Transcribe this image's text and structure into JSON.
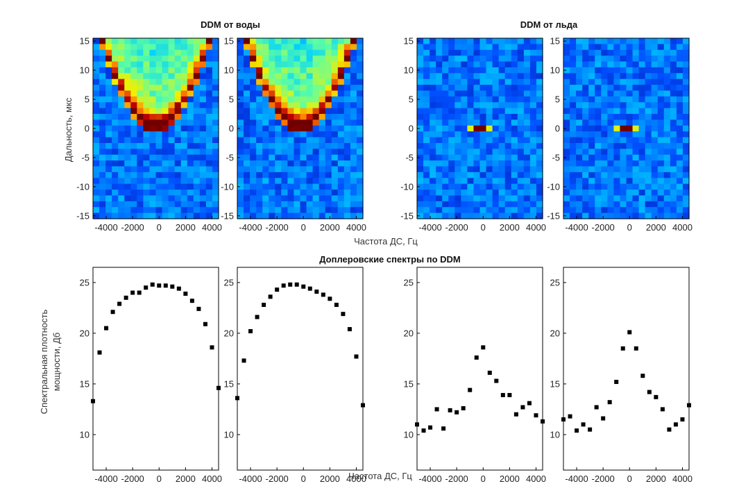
{
  "titles": {
    "water": "DDM от воды",
    "ice": "DDM от льда",
    "spectra": "Доплеровские спектры по DDM"
  },
  "labels": {
    "ddm_ylabel": "Дальность, мкс",
    "ddm_xlabel": "Частота ДС, Гц",
    "spec_ylabel_line1": "Спектральная плотность",
    "spec_ylabel_line2": "мощности, Дб",
    "spec_xlabel": "Частота ДС, Гц"
  },
  "colors": {
    "colormap": [
      "#00008f",
      "#0050ff",
      "#00d0ff",
      "#60ffa0",
      "#f0f000",
      "#ff8000",
      "#c00000",
      "#700000"
    ],
    "marker": "#000000"
  },
  "chart_data": [
    {
      "id": "ddm-water-1",
      "type": "heatmap",
      "pattern": "water",
      "x_ticks": [
        -4000,
        -2000,
        0,
        2000,
        4000
      ],
      "y_ticks": [
        15,
        10,
        5,
        0,
        -5,
        -10,
        -15
      ],
      "xlim": [
        -5000,
        4500
      ],
      "ylim": [
        -15.5,
        15.5
      ]
    },
    {
      "id": "ddm-water-2",
      "type": "heatmap",
      "pattern": "water",
      "x_ticks": [
        -4000,
        -2000,
        0,
        2000,
        4000
      ],
      "y_ticks": [
        15,
        10,
        5,
        0,
        -5,
        -10,
        -15
      ],
      "xlim": [
        -5000,
        4500
      ],
      "ylim": [
        -15.5,
        15.5
      ]
    },
    {
      "id": "ddm-ice-1",
      "type": "heatmap",
      "pattern": "ice",
      "x_ticks": [
        -4000,
        -2000,
        0,
        2000,
        4000
      ],
      "y_ticks": [
        15,
        10,
        5,
        0,
        -5,
        -10,
        -15
      ],
      "xlim": [
        -5000,
        4500
      ],
      "ylim": [
        -15.5,
        15.5
      ]
    },
    {
      "id": "ddm-ice-2",
      "type": "heatmap",
      "pattern": "ice",
      "x_ticks": [
        -4000,
        -2000,
        0,
        2000,
        4000
      ],
      "y_ticks": [
        15,
        10,
        5,
        0,
        -5,
        -10,
        -15
      ],
      "xlim": [
        -5000,
        4500
      ],
      "ylim": [
        -15.5,
        15.5
      ]
    },
    {
      "id": "spec-water-1",
      "type": "scatter",
      "x": [
        -5000,
        -4500,
        -4000,
        -3500,
        -3000,
        -2500,
        -2000,
        -1500,
        -1000,
        -500,
        0,
        500,
        1000,
        1500,
        2000,
        2500,
        3000,
        3500,
        4000,
        4500
      ],
      "y": [
        13.3,
        18.1,
        20.5,
        22.1,
        22.9,
        23.5,
        24.0,
        24.0,
        24.5,
        24.8,
        24.7,
        24.7,
        24.6,
        24.4,
        23.9,
        23.2,
        22.4,
        20.9,
        18.6,
        14.6
      ],
      "x_ticks": [
        -4000,
        -2000,
        0,
        2000,
        4000
      ],
      "y_ticks": [
        10,
        15,
        20,
        25
      ],
      "xlim": [
        -5000,
        4500
      ],
      "ylim": [
        6.5,
        26.5
      ]
    },
    {
      "id": "spec-water-2",
      "type": "scatter",
      "x": [
        -5000,
        -4500,
        -4000,
        -3500,
        -3000,
        -2500,
        -2000,
        -1500,
        -1000,
        -500,
        0,
        500,
        1000,
        1500,
        2000,
        2500,
        3000,
        3500,
        4000,
        4500
      ],
      "y": [
        13.6,
        17.3,
        20.2,
        21.6,
        22.8,
        23.6,
        24.3,
        24.7,
        24.8,
        24.8,
        24.6,
        24.4,
        24.1,
        23.8,
        23.4,
        22.8,
        21.9,
        20.4,
        17.7,
        12.9
      ],
      "x_ticks": [
        -4000,
        -2000,
        0,
        2000,
        4000
      ],
      "y_ticks": [
        10,
        15,
        20,
        25
      ],
      "xlim": [
        -5000,
        4500
      ],
      "ylim": [
        6.5,
        26.5
      ]
    },
    {
      "id": "spec-ice-1",
      "type": "scatter",
      "x": [
        -5000,
        -4500,
        -4000,
        -3500,
        -3000,
        -2500,
        -2000,
        -1500,
        -1000,
        -500,
        0,
        500,
        1000,
        1500,
        2000,
        2500,
        3000,
        3500,
        4000,
        4500
      ],
      "y": [
        11.0,
        10.4,
        10.7,
        12.5,
        10.6,
        12.4,
        12.2,
        12.6,
        14.4,
        17.6,
        18.6,
        16.1,
        15.3,
        13.9,
        13.9,
        12.0,
        12.7,
        13.1,
        11.9,
        11.3
      ],
      "x_ticks": [
        -4000,
        -2000,
        0,
        2000,
        4000
      ],
      "y_ticks": [
        10,
        15,
        20,
        25
      ],
      "xlim": [
        -5000,
        4500
      ],
      "ylim": [
        6.5,
        26.5
      ]
    },
    {
      "id": "spec-ice-2",
      "type": "scatter",
      "x": [
        -5000,
        -4500,
        -4000,
        -3500,
        -3000,
        -2500,
        -2000,
        -1500,
        -1000,
        -500,
        0,
        500,
        1000,
        1500,
        2000,
        2500,
        3000,
        3500,
        4000,
        4500
      ],
      "y": [
        11.5,
        11.8,
        10.4,
        11.0,
        10.5,
        12.7,
        11.6,
        13.2,
        15.2,
        18.5,
        20.1,
        18.5,
        15.8,
        14.2,
        13.7,
        12.5,
        10.5,
        11.0,
        11.5,
        12.9
      ],
      "x_ticks": [
        -4000,
        -2000,
        0,
        2000,
        4000
      ],
      "y_ticks": [
        10,
        15,
        20,
        25
      ],
      "xlim": [
        -5000,
        4500
      ],
      "ylim": [
        6.5,
        26.5
      ]
    }
  ]
}
